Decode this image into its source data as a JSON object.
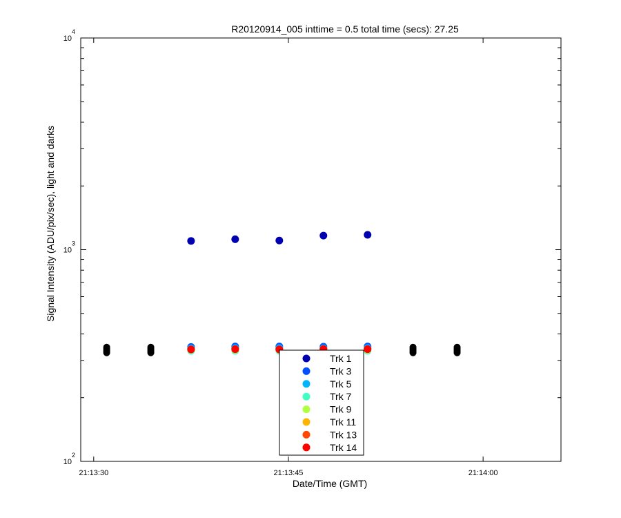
{
  "chart_data": {
    "type": "scatter",
    "title": "R20120914_005 inttime = 0.5 total time (secs): 27.25",
    "xlabel": "Date/Time (GMT)",
    "ylabel": "Signal Intensity (ADU/pix/sec), light and darks",
    "y_scale": "log",
    "ylim": [
      100,
      10000
    ],
    "xlim": [
      "21:13:29",
      "21:14:06"
    ],
    "x_ticks": [
      "21:13:30",
      "21:13:45",
      "21:14:00"
    ],
    "y_ticks": [
      {
        "base": "10",
        "exp": "2",
        "value": 100
      },
      {
        "base": "10",
        "exp": "3",
        "value": 1000
      },
      {
        "base": "10",
        "exp": "4",
        "value": 10000
      }
    ],
    "legend_position": "bottom-center",
    "series": [
      {
        "name": "Trk 1",
        "color": "#0000b0",
        "x": [
          "21:13:37.5",
          "21:13:40.9",
          "21:13:44.3",
          "21:13:47.7",
          "21:13:51.1"
        ],
        "y": [
          1100,
          1120,
          1105,
          1165,
          1175
        ]
      },
      {
        "name": "Trk 3",
        "color": "#0050ff",
        "x": [
          "21:13:37.5",
          "21:13:40.9",
          "21:13:44.3",
          "21:13:47.7",
          "21:13:51.1"
        ],
        "y": [
          347,
          349,
          349,
          348,
          349
        ]
      },
      {
        "name": "Trk 5",
        "color": "#00b4ff",
        "x": [
          "21:13:37.5",
          "21:13:40.9",
          "21:13:44.3",
          "21:13:47.7",
          "21:13:51.1"
        ],
        "y": [
          342,
          343,
          343,
          342,
          343
        ]
      },
      {
        "name": "Trk 7",
        "color": "#40ffc0",
        "x": [
          "21:13:37.5",
          "21:13:40.9",
          "21:13:44.3",
          "21:13:47.7",
          "21:13:51.1"
        ],
        "y": [
          333,
          333,
          333,
          333,
          333
        ]
      },
      {
        "name": "Trk 9",
        "color": "#b0ff40",
        "x": [
          "21:13:37.5",
          "21:13:40.9",
          "21:13:44.3",
          "21:13:47.7",
          "21:13:51.1"
        ],
        "y": [
          337,
          337,
          337,
          337,
          337
        ]
      },
      {
        "name": "Trk 11",
        "color": "#ffb400",
        "x": [
          "21:13:37.5",
          "21:13:40.9",
          "21:13:44.3",
          "21:13:47.7",
          "21:13:51.1"
        ],
        "y": [
          338,
          338,
          338,
          338,
          338
        ]
      },
      {
        "name": "Trk 13",
        "color": "#ff4800",
        "x": [
          "21:13:37.5",
          "21:13:40.9",
          "21:13:44.3",
          "21:13:47.7",
          "21:13:51.1"
        ],
        "y": [
          338,
          339,
          338,
          339,
          339
        ]
      },
      {
        "name": "Trk 14",
        "color": "#ff0000",
        "x": [
          "21:13:37.5",
          "21:13:40.9",
          "21:13:44.3",
          "21:13:47.7",
          "21:13:51.1"
        ],
        "y": [
          338,
          339,
          338,
          339,
          339
        ]
      }
    ],
    "darks": {
      "color": "#000000",
      "x": [
        "21:13:31.0",
        "21:13:34.4",
        "21:13:54.6",
        "21:13:58.0"
      ],
      "y": [
        [
          326,
          331,
          336,
          341,
          346
        ],
        [
          326,
          331,
          336,
          341,
          346
        ],
        [
          326,
          331,
          336,
          341,
          346
        ],
        [
          326,
          331,
          336,
          341,
          346
        ]
      ]
    }
  }
}
